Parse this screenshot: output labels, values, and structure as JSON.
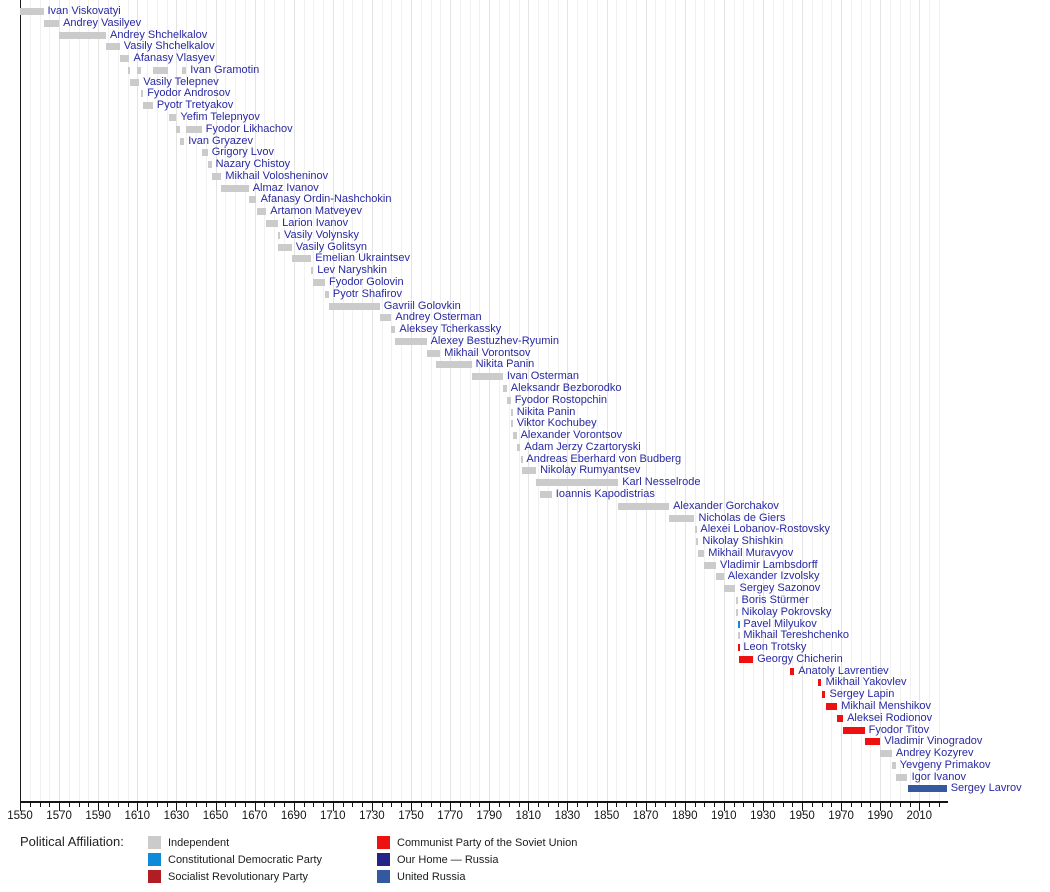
{
  "chart_data": {
    "type": "bar",
    "variant": "gantt-timeline",
    "title": "",
    "axis": {
      "start": 1550,
      "end": 2025,
      "major_tick_interval": 20,
      "minor_tick_interval": 5,
      "tick_labels": [
        1550,
        1570,
        1590,
        1610,
        1630,
        1650,
        1670,
        1690,
        1710,
        1730,
        1750,
        1770,
        1790,
        1810,
        1830,
        1850,
        1870,
        1890,
        1910,
        1930,
        1950,
        1970,
        1990,
        2010
      ]
    },
    "grid": "vertical, every 5 years",
    "legend_position": "bottom",
    "affiliation_colors": {
      "independent": "#cbcbcb",
      "kadet": "#0d8bd9",
      "sr": "#b01e23",
      "communist": "#ee1111",
      "our-home": "#232388",
      "united-russia": "#35599f"
    },
    "legend": {
      "title": "Political Affiliation:",
      "entries": [
        {
          "label": "Independent",
          "affiliation": "independent",
          "column": 0
        },
        {
          "label": "Constitutional Democratic Party",
          "affiliation": "kadet",
          "column": 0
        },
        {
          "label": "Socialist Revolutionary Party",
          "affiliation": "sr",
          "column": 0
        },
        {
          "label": "Communist Party of the Soviet Union",
          "affiliation": "communist",
          "column": 1
        },
        {
          "label": "Our Home — Russia",
          "affiliation": "our-home",
          "column": 1
        },
        {
          "label": "United Russia",
          "affiliation": "united-russia",
          "column": 1
        }
      ]
    },
    "ministers": [
      {
        "name": "Ivan Viskovatyi",
        "segments": [
          [
            1549,
            1562
          ]
        ]
      },
      {
        "name": "Andrey Vasilyev",
        "segments": [
          [
            1562,
            1570
          ]
        ]
      },
      {
        "name": "Andrey Shchelkalov",
        "segments": [
          [
            1570,
            1594
          ]
        ]
      },
      {
        "name": "Vasily Shchelkalov",
        "segments": [
          [
            1594,
            1601
          ]
        ]
      },
      {
        "name": "Afanasy Vlasyev",
        "segments": [
          [
            1601,
            1606
          ]
        ]
      },
      {
        "name": "Ivan Gramotin",
        "segments": [
          [
            1605,
            1606
          ],
          [
            1610,
            1612
          ],
          [
            1618,
            1626
          ],
          [
            1633,
            1635
          ]
        ]
      },
      {
        "name": "Vasily Telepnev",
        "segments": [
          [
            1606,
            1611
          ]
        ]
      },
      {
        "name": "Fyodor Androsov",
        "segments": [
          [
            1612,
            1613
          ]
        ]
      },
      {
        "name": "Pyotr Tretyakov",
        "segments": [
          [
            1613,
            1618
          ]
        ]
      },
      {
        "name": "Yefim Telepnyov",
        "segments": [
          [
            1626,
            1630
          ]
        ]
      },
      {
        "name": "Fyodor Likhachov",
        "segments": [
          [
            1630,
            1632
          ],
          [
            1635,
            1643
          ]
        ]
      },
      {
        "name": "Ivan Gryazev",
        "segments": [
          [
            1632,
            1634
          ]
        ]
      },
      {
        "name": "Grigory Lvov",
        "segments": [
          [
            1643,
            1646
          ]
        ]
      },
      {
        "name": "Nazary Chistoy",
        "segments": [
          [
            1646,
            1648
          ]
        ]
      },
      {
        "name": "Mikhail Volosheninov",
        "segments": [
          [
            1648,
            1653
          ]
        ]
      },
      {
        "name": "Almaz Ivanov",
        "segments": [
          [
            1653,
            1667
          ]
        ]
      },
      {
        "name": "Afanasy Ordin-Nashchokin",
        "segments": [
          [
            1667,
            1671
          ]
        ]
      },
      {
        "name": "Artamon Matveyev",
        "segments": [
          [
            1671,
            1676
          ]
        ]
      },
      {
        "name": "Larion Ivanov",
        "segments": [
          [
            1676,
            1682
          ]
        ]
      },
      {
        "name": "Vasily Volynsky",
        "segments": [
          [
            1682,
            1683
          ]
        ]
      },
      {
        "name": "Vasily Golitsyn",
        "segments": [
          [
            1682,
            1689
          ]
        ]
      },
      {
        "name": "Emelian Ukraintsev",
        "segments": [
          [
            1689,
            1699
          ]
        ]
      },
      {
        "name": "Lev Naryshkin",
        "segments": [
          [
            1699,
            1700
          ]
        ]
      },
      {
        "name": "Fyodor Golovin",
        "segments": [
          [
            1700,
            1706
          ]
        ]
      },
      {
        "name": "Pyotr Shafirov",
        "segments": [
          [
            1706,
            1708
          ]
        ]
      },
      {
        "name": "Gavriil Golovkin",
        "segments": [
          [
            1708,
            1734
          ]
        ]
      },
      {
        "name": "Andrey Osterman",
        "segments": [
          [
            1734,
            1740
          ]
        ]
      },
      {
        "name": "Aleksey Tcherkassky",
        "segments": [
          [
            1740,
            1742
          ]
        ]
      },
      {
        "name": "Alexey Bestuzhev-Ryumin",
        "segments": [
          [
            1742,
            1758
          ]
        ]
      },
      {
        "name": "Mikhail Vorontsov",
        "segments": [
          [
            1758,
            1765
          ]
        ]
      },
      {
        "name": "Nikita Panin",
        "segments": [
          [
            1763,
            1781
          ]
        ]
      },
      {
        "name": "Ivan Osterman",
        "segments": [
          [
            1781,
            1797
          ]
        ]
      },
      {
        "name": "Aleksandr Bezborodko",
        "segments": [
          [
            1797,
            1799
          ]
        ]
      },
      {
        "name": "Fyodor Rostopchin",
        "segments": [
          [
            1799,
            1801
          ]
        ]
      },
      {
        "name": "Nikita Panin",
        "segments": [
          [
            1801,
            1802
          ]
        ]
      },
      {
        "name": "Viktor Kochubey",
        "segments": [
          [
            1801,
            1802
          ]
        ]
      },
      {
        "name": "Alexander Vorontsov",
        "segments": [
          [
            1802,
            1804
          ]
        ]
      },
      {
        "name": "Adam Jerzy Czartoryski",
        "segments": [
          [
            1804,
            1806
          ]
        ]
      },
      {
        "name": "Andreas Eberhard von Budberg",
        "segments": [
          [
            1806,
            1807
          ]
        ]
      },
      {
        "name": "Nikolay Rumyantsev",
        "segments": [
          [
            1807,
            1814
          ]
        ]
      },
      {
        "name": "Karl Nesselrode",
        "segments": [
          [
            1814,
            1856
          ]
        ]
      },
      {
        "name": "Ioannis Kapodistrias",
        "segments": [
          [
            1816,
            1822
          ]
        ]
      },
      {
        "name": "Alexander Gorchakov",
        "segments": [
          [
            1856,
            1882
          ]
        ]
      },
      {
        "name": "Nicholas de Giers",
        "segments": [
          [
            1882,
            1895
          ]
        ]
      },
      {
        "name": "Alexei Lobanov-Rostovsky",
        "segments": [
          [
            1895,
            1896
          ]
        ]
      },
      {
        "name": "Nikolay Shishkin",
        "segments": [
          [
            1896,
            1897
          ]
        ]
      },
      {
        "name": "Mikhail Muravyov",
        "segments": [
          [
            1897,
            1900
          ]
        ]
      },
      {
        "name": "Vladimir Lambsdorff",
        "segments": [
          [
            1900,
            1906
          ]
        ]
      },
      {
        "name": "Alexander Izvolsky",
        "segments": [
          [
            1906,
            1910
          ]
        ]
      },
      {
        "name": "Sergey Sazonov",
        "segments": [
          [
            1910,
            1916
          ]
        ]
      },
      {
        "name": "Boris Stürmer",
        "segments": [
          [
            1916,
            1917
          ]
        ]
      },
      {
        "name": "Nikolay Pokrovsky",
        "segments": [
          [
            1916,
            1917
          ]
        ]
      },
      {
        "name": "Pavel Milyukov",
        "affiliation": "kadet",
        "segments": [
          [
            1917,
            1918
          ]
        ]
      },
      {
        "name": "Mikhail Tereshchenko",
        "segments": [
          [
            1917,
            1918
          ]
        ]
      },
      {
        "name": "Leon Trotsky",
        "affiliation": "communist",
        "segments": [
          [
            1917,
            1918
          ]
        ]
      },
      {
        "name": "Georgy Chicherin",
        "affiliation": "communist",
        "segments": [
          [
            1918,
            1925
          ]
        ]
      },
      {
        "name": "Anatoly Lavrentiev",
        "affiliation": "communist",
        "segments": [
          [
            1944,
            1946
          ]
        ]
      },
      {
        "name": "Mikhail Yakovlev",
        "affiliation": "communist",
        "segments": [
          [
            1958,
            1960
          ]
        ]
      },
      {
        "name": "Sergey Lapin",
        "affiliation": "communist",
        "segments": [
          [
            1960,
            1962
          ]
        ]
      },
      {
        "name": "Mikhail Menshikov",
        "affiliation": "communist",
        "segments": [
          [
            1962,
            1968
          ]
        ]
      },
      {
        "name": "Aleksei Rodionov",
        "affiliation": "communist",
        "segments": [
          [
            1968,
            1971
          ]
        ]
      },
      {
        "name": "Fyodor Titov",
        "affiliation": "communist",
        "segments": [
          [
            1971,
            1982
          ]
        ]
      },
      {
        "name": "Vladimir Vinogradov",
        "affiliation": "communist",
        "segments": [
          [
            1982,
            1990
          ]
        ]
      },
      {
        "name": "Andrey Kozyrev",
        "segments": [
          [
            1990,
            1996
          ]
        ]
      },
      {
        "name": "Yevgeny Primakov",
        "segments": [
          [
            1996,
            1998
          ]
        ]
      },
      {
        "name": "Igor Ivanov",
        "segments": [
          [
            1998,
            2004
          ]
        ]
      },
      {
        "name": "Sergey Lavrov",
        "affiliation": "united-russia",
        "segments": [
          [
            2004,
            2024
          ]
        ]
      }
    ]
  }
}
